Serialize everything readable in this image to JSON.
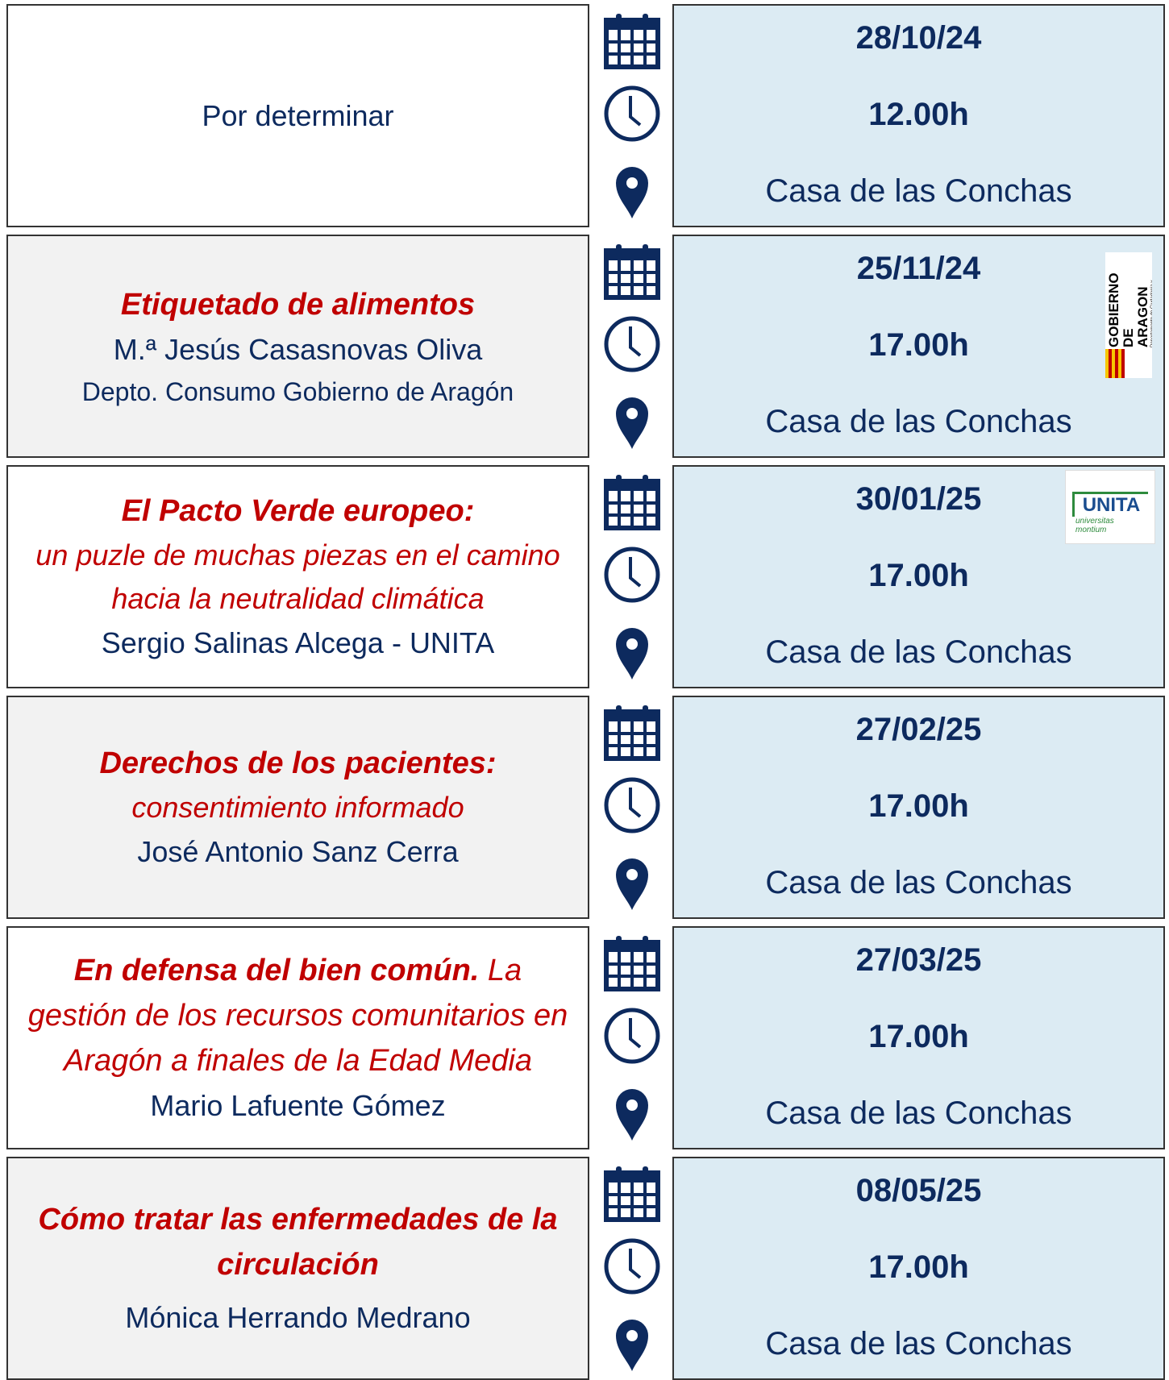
{
  "rows": [
    {
      "speaker": "Por determinar",
      "date": "28/10/24",
      "time": "12.00h",
      "place": "Casa de las Conchas"
    },
    {
      "title": "Etiquetado de alimentos",
      "speaker": "M.ª Jesús Casasnovas Oliva",
      "affiliation": "Depto. Consumo Gobierno de Aragón",
      "date": "25/11/24",
      "time": "17.00h",
      "place": "Casa de las Conchas",
      "logo": {
        "name": "GOBIERNO DE ARAGON",
        "detail": "Departamento de Ciudadanía y Derechos Sociales"
      }
    },
    {
      "title": "El Pacto Verde europeo:",
      "subtitle": "un puzle de muchas piezas en el camino hacia la neutralidad climática",
      "speaker": "Sergio Salinas Alcega - UNITA",
      "date": "30/01/25",
      "time": "17.00h",
      "place": "Casa de las Conchas",
      "logo": {
        "name": "UNITA",
        "detail": "universitas montium"
      }
    },
    {
      "title": "Derechos de los pacientes:",
      "subtitle": "consentimiento informado",
      "speaker": "José Antonio Sanz Cerra",
      "date": "27/02/25",
      "time": "17.00h",
      "place": "Casa de las Conchas"
    },
    {
      "title": "En defensa del bien común.",
      "title_continuation": "La gestión de los recursos comunitarios en Aragón a finales de la Edad Media",
      "speaker": "Mario Lafuente Gómez",
      "date": "27/03/25",
      "time": "17.00h",
      "place": "Casa de las Conchas"
    },
    {
      "title": "Cómo tratar las enfermedades de la circulación",
      "speaker": "Mónica Herrando Medrano",
      "date": "08/05/25",
      "time": "17.00h",
      "place": "Casa de las Conchas"
    }
  ]
}
